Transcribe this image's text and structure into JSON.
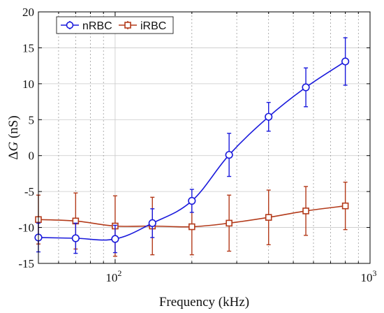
{
  "chart_data": {
    "type": "line",
    "title": "",
    "xlabel": "Frequency (kHz)",
    "ylabel": "ΔG (nS)",
    "xscale": "log",
    "xlim": [
      50,
      1000
    ],
    "ylim": [
      -15,
      20
    ],
    "x_ticks": [
      {
        "value": 100,
        "base": "10",
        "exp": "2"
      },
      {
        "value": 1000,
        "base": "10",
        "exp": "3"
      }
    ],
    "y_ticks": [
      -15,
      -10,
      -5,
      0,
      5,
      10,
      15,
      20
    ],
    "grid": true,
    "legend_position": "top-left",
    "series": [
      {
        "name": "nRBC",
        "color": "#1a1adc",
        "marker": "circle",
        "x": [
          50,
          70,
          100,
          140,
          200,
          280,
          400,
          560,
          800
        ],
        "y": [
          -11.4,
          -11.5,
          -11.6,
          -9.4,
          -6.3,
          0.1,
          5.4,
          9.5,
          13.1
        ],
        "err": [
          2.0,
          2.1,
          1.9,
          2.0,
          1.6,
          3.0,
          2.0,
          2.7,
          3.3
        ]
      },
      {
        "name": "iRBC",
        "color": "#b33a1a",
        "marker": "square",
        "x": [
          50,
          70,
          100,
          140,
          200,
          280,
          400,
          560,
          800
        ],
        "y": [
          -8.9,
          -9.1,
          -9.8,
          -9.8,
          -9.9,
          -9.4,
          -8.6,
          -7.7,
          -7.0
        ],
        "err": [
          3.4,
          3.9,
          4.2,
          4.0,
          3.9,
          3.9,
          3.8,
          3.4,
          3.3
        ]
      }
    ]
  }
}
